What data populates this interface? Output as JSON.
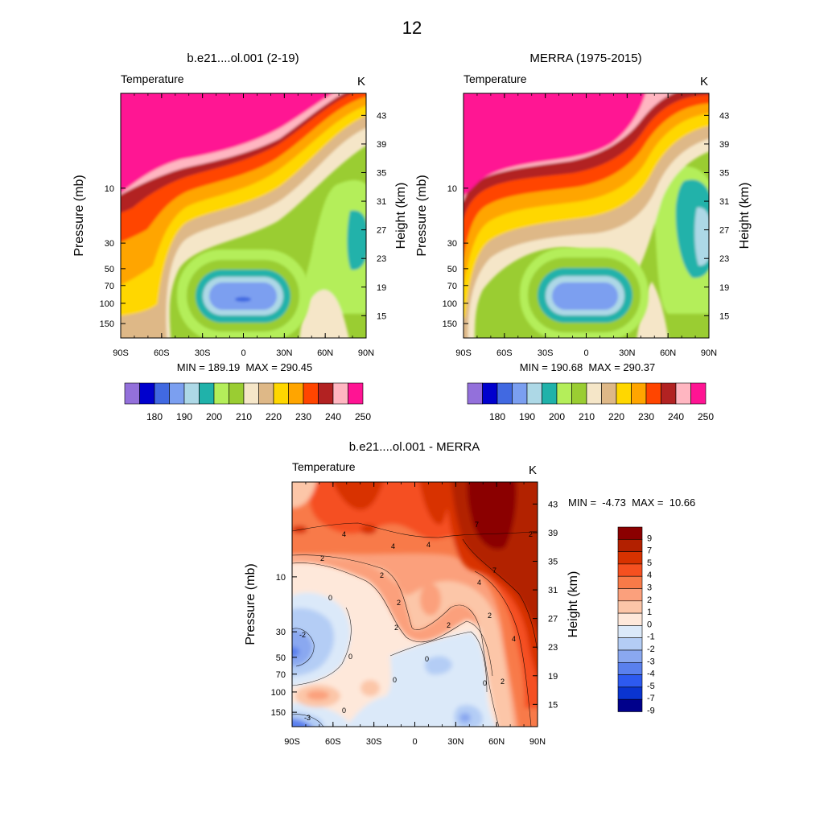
{
  "figure": {
    "title": "12"
  },
  "chart_data": [
    {
      "type": "heatmap",
      "id": "model",
      "title": "b.e21....ol.001 (2-19)",
      "variable": "Temperature",
      "units": "K",
      "ylabel": "Pressure (mb)",
      "y2label": "Height (km)",
      "xlabel": "",
      "x_ticks": [
        "90S",
        "60S",
        "30S",
        "0",
        "30N",
        "60N",
        "90N"
      ],
      "y_ticks": [
        "10",
        "30",
        "50",
        "70",
        "100",
        "150"
      ],
      "y_tick_values": [
        10,
        30,
        50,
        70,
        100,
        150
      ],
      "y2_ticks": [
        "43",
        "39",
        "35",
        "31",
        "27",
        "23",
        "19",
        "15"
      ],
      "xlim": [
        -90,
        90
      ],
      "ylim_pressure": [
        200,
        1.5
      ],
      "min_max": "MIN = 189.19  MAX = 290.45",
      "min": 189.19,
      "max": 290.45,
      "colorbar_labels": [
        "180",
        "190",
        "200",
        "210",
        "220",
        "230",
        "240",
        "250"
      ],
      "levels": [
        175,
        180,
        185,
        190,
        195,
        200,
        205,
        210,
        215,
        220,
        225,
        230,
        235,
        240,
        245,
        250
      ],
      "colors": [
        "#9370db",
        "#0000cd",
        "#4169e1",
        "#7b9ff0",
        "#add8e6",
        "#20b2aa",
        "#b4ee5a",
        "#9acd32",
        "#f5e6c8",
        "#deb887",
        "#ffd700",
        "#ffa500",
        "#ff4500",
        "#b22222",
        "#ffb6c1",
        "#ff1493"
      ]
    },
    {
      "type": "heatmap",
      "id": "obs",
      "title": "MERRA (1975-2015)",
      "variable": "Temperature",
      "units": "K",
      "ylabel": "Pressure (mb)",
      "y2label": "Height (km)",
      "xlabel": "",
      "x_ticks": [
        "90S",
        "60S",
        "30S",
        "0",
        "30N",
        "60N",
        "90N"
      ],
      "y_ticks": [
        "10",
        "30",
        "50",
        "70",
        "100",
        "150"
      ],
      "y_tick_values": [
        10,
        30,
        50,
        70,
        100,
        150
      ],
      "y2_ticks": [
        "43",
        "39",
        "35",
        "31",
        "27",
        "23",
        "19",
        "15"
      ],
      "xlim": [
        -90,
        90
      ],
      "ylim_pressure": [
        200,
        1.5
      ],
      "min_max": "MIN = 190.68  MAX = 290.37",
      "min": 190.68,
      "max": 290.37,
      "colorbar_labels": [
        "180",
        "190",
        "200",
        "210",
        "220",
        "230",
        "240",
        "250"
      ],
      "levels": [
        175,
        180,
        185,
        190,
        195,
        200,
        205,
        210,
        215,
        220,
        225,
        230,
        235,
        240,
        245,
        250
      ],
      "colors": [
        "#9370db",
        "#0000cd",
        "#4169e1",
        "#7b9ff0",
        "#add8e6",
        "#20b2aa",
        "#b4ee5a",
        "#9acd32",
        "#f5e6c8",
        "#deb887",
        "#ffd700",
        "#ffa500",
        "#ff4500",
        "#b22222",
        "#ffb6c1",
        "#ff1493"
      ]
    },
    {
      "type": "heatmap",
      "id": "diff",
      "title": "b.e21....ol.001 - MERRA",
      "variable": "Temperature",
      "units": "K",
      "ylabel": "Pressure (mb)",
      "y2label": "Height (km)",
      "x_ticks": [
        "90S",
        "60S",
        "30S",
        "0",
        "30N",
        "60N",
        "90N"
      ],
      "y_ticks": [
        "10",
        "30",
        "50",
        "70",
        "100",
        "150"
      ],
      "y_tick_values": [
        10,
        30,
        50,
        70,
        100,
        150
      ],
      "y2_ticks": [
        "43",
        "39",
        "35",
        "31",
        "27",
        "23",
        "19",
        "15"
      ],
      "xlim": [
        -90,
        90
      ],
      "ylim_pressure": [
        200,
        1.5
      ],
      "min_max": "MIN =  -4.73  MAX =  10.66",
      "min": -4.73,
      "max": 10.66,
      "colorbar_labels": [
        "9",
        "7",
        "5",
        "4",
        "3",
        "2",
        "1",
        "0",
        "-1",
        "-2",
        "-3",
        "-4",
        "-5",
        "-7",
        "-9"
      ],
      "colors_top_to_bottom": [
        "#8b0000",
        "#b22000",
        "#d83200",
        "#f55020",
        "#f87a48",
        "#fba07c",
        "#fcc6a8",
        "#fee8da",
        "#dbe9f9",
        "#b4cdf5",
        "#8aa8f0",
        "#5a80ee",
        "#2d5af0",
        "#0a34d0",
        "#00008b"
      ],
      "contour_labels": [
        "4",
        "2",
        "0",
        "-2",
        "-3",
        "7"
      ]
    }
  ]
}
